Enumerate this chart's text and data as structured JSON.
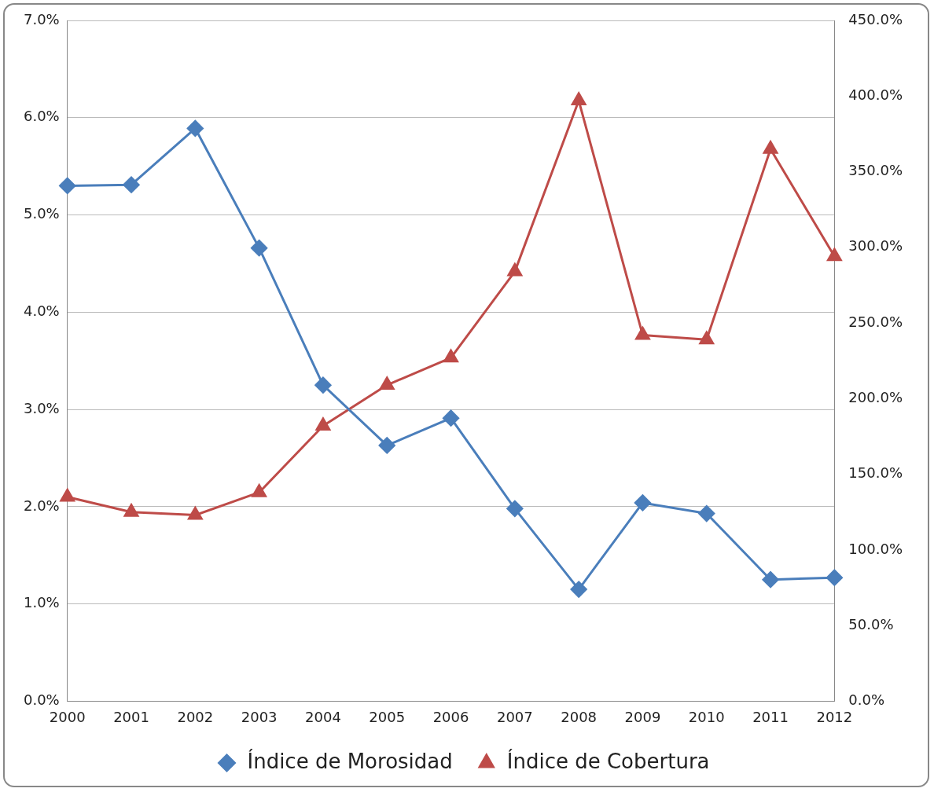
{
  "chart_data": {
    "type": "line",
    "categories": [
      "2000",
      "2001",
      "2002",
      "2003",
      "2004",
      "2005",
      "2006",
      "2007",
      "2008",
      "2009",
      "2010",
      "2011",
      "2012"
    ],
    "series": [
      {
        "name": "Índice de Morosidad",
        "color": "#4a7ebb",
        "marker": "diamond",
        "values": [
          5.3,
          5.31,
          5.89,
          4.66,
          3.25,
          2.63,
          2.91,
          1.98,
          1.15,
          2.04,
          1.93,
          1.25,
          1.27
        ]
      },
      {
        "name": "Índice de Cobertura",
        "color": "#be4b48",
        "marker": "triangle",
        "axis": "y2",
        "values": [
          135,
          125,
          123,
          138,
          182,
          209,
          227,
          284,
          397,
          242,
          239,
          365,
          294
        ]
      }
    ],
    "ylim": [
      0,
      7
    ],
    "yticks": [
      {
        "value": 0,
        "label": "0.0%"
      },
      {
        "value": 1,
        "label": "1.0%"
      },
      {
        "value": 2,
        "label": "2.0%"
      },
      {
        "value": 3,
        "label": "3.0%"
      },
      {
        "value": 4,
        "label": "4.0%"
      },
      {
        "value": 5,
        "label": "5.0%"
      },
      {
        "value": 6,
        "label": "6.0%"
      },
      {
        "value": 7,
        "label": "7.0%"
      }
    ],
    "y2lim": [
      0,
      450
    ],
    "y2ticks": [
      {
        "value": 0,
        "label": "0.0%"
      },
      {
        "value": 50,
        "label": "50.0%"
      },
      {
        "value": 100,
        "label": "100.0%"
      },
      {
        "value": 150,
        "label": "150.0%"
      },
      {
        "value": 200,
        "label": "200.0%"
      },
      {
        "value": 250,
        "label": "250.0%"
      },
      {
        "value": 300,
        "label": "300.0%"
      },
      {
        "value": 350,
        "label": "350.0%"
      },
      {
        "value": 400,
        "label": "400.0%"
      },
      {
        "value": 450,
        "label": "450.0%"
      }
    ],
    "grid": "y",
    "legend": "bottom",
    "line_style": "solid"
  }
}
